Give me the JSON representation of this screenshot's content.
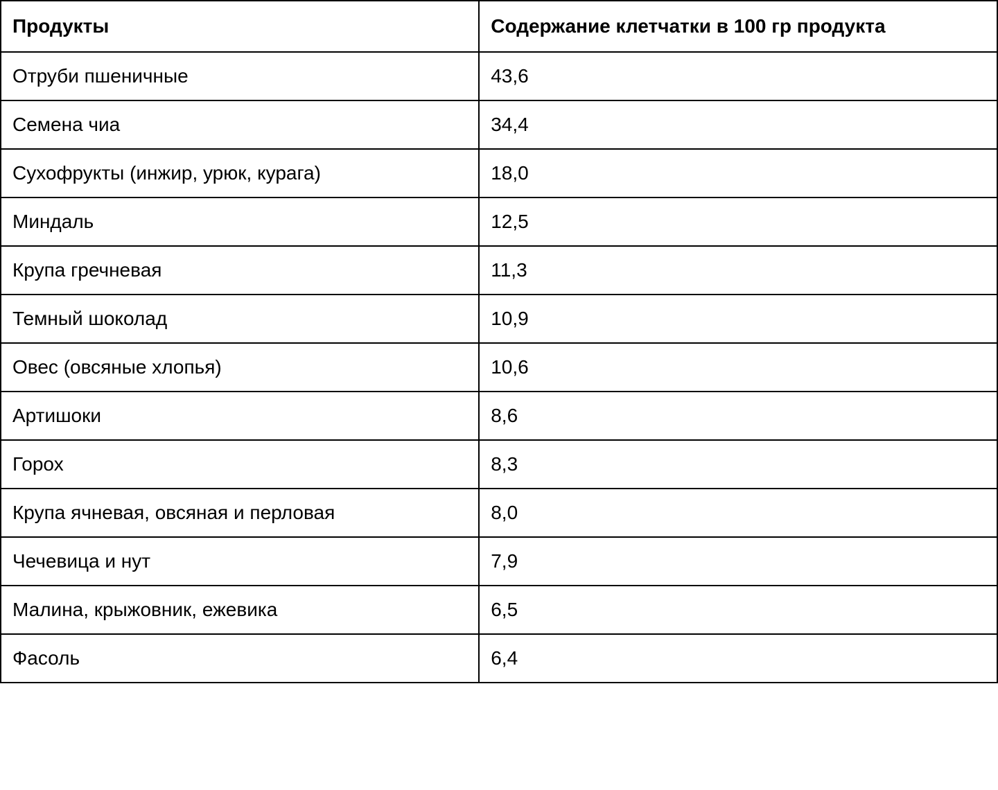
{
  "table": {
    "type": "table",
    "background_color": "#ffffff",
    "border_color": "#000000",
    "border_width": 2,
    "text_color": "#000000",
    "header_fontsize": 28,
    "cell_fontsize": 28,
    "header_fontweight": "bold",
    "cell_fontweight": "normal",
    "columns": [
      {
        "key": "product",
        "label": "Продукты",
        "width_pct": 48,
        "align": "left"
      },
      {
        "key": "value",
        "label": "Содержание клетчатки в 100 гр продукта",
        "width_pct": 52,
        "align": "left"
      }
    ],
    "rows": [
      {
        "product": "Отруби пшеничные",
        "value": "43,6"
      },
      {
        "product": "Семена чиа",
        "value": "34,4"
      },
      {
        "product": "Сухофрукты (инжир, урюк, курага)",
        "value": "18,0"
      },
      {
        "product": "Миндаль",
        "value": "12,5"
      },
      {
        "product": "Крупа гречневая",
        "value": "11,3"
      },
      {
        "product": "Темный шоколад",
        "value": "10,9"
      },
      {
        "product": "Овес (овсяные хлопья)",
        "value": "10,6"
      },
      {
        "product": "Артишоки",
        "value": "8,6"
      },
      {
        "product": "Горох",
        "value": "8,3"
      },
      {
        "product": "Крупа ячневая, овсяная и перловая",
        "value": "8,0"
      },
      {
        "product": "Чечевица и нут",
        "value": "7,9"
      },
      {
        "product": "Малина, крыжовник, ежевика",
        "value": "6,5"
      },
      {
        "product": "Фасоль",
        "value": "6,4"
      }
    ]
  }
}
